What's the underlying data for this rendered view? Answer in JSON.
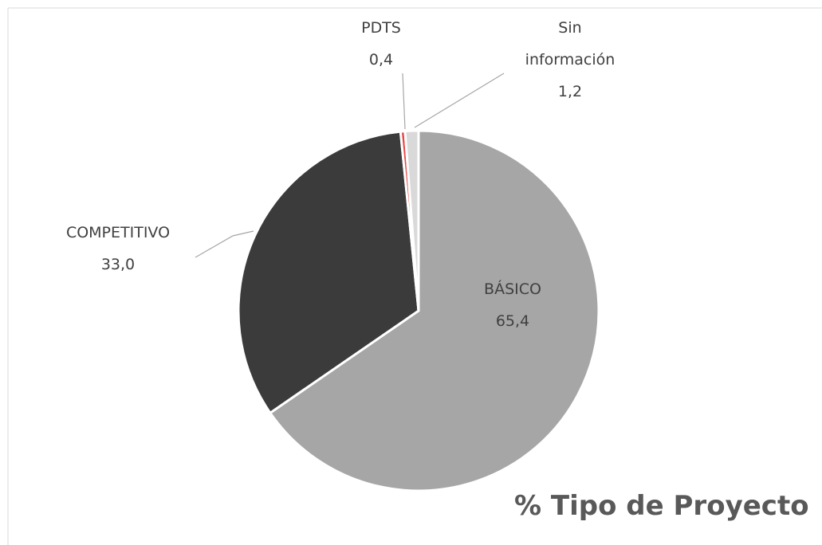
{
  "chart_data": {
    "type": "pie",
    "title": "% Tipo de Proyecto",
    "categories": [
      "BÁSICO",
      "COMPETITIVO",
      "PDTS",
      "Sin información"
    ],
    "values": [
      65.4,
      33.0,
      0.4,
      1.2
    ],
    "value_labels": [
      "65,4",
      "33,0",
      "0,4",
      "1,2"
    ],
    "colors": [
      "#a6a6a6",
      "#3b3b3b",
      "#e8484a",
      "#d9d9d9"
    ]
  }
}
